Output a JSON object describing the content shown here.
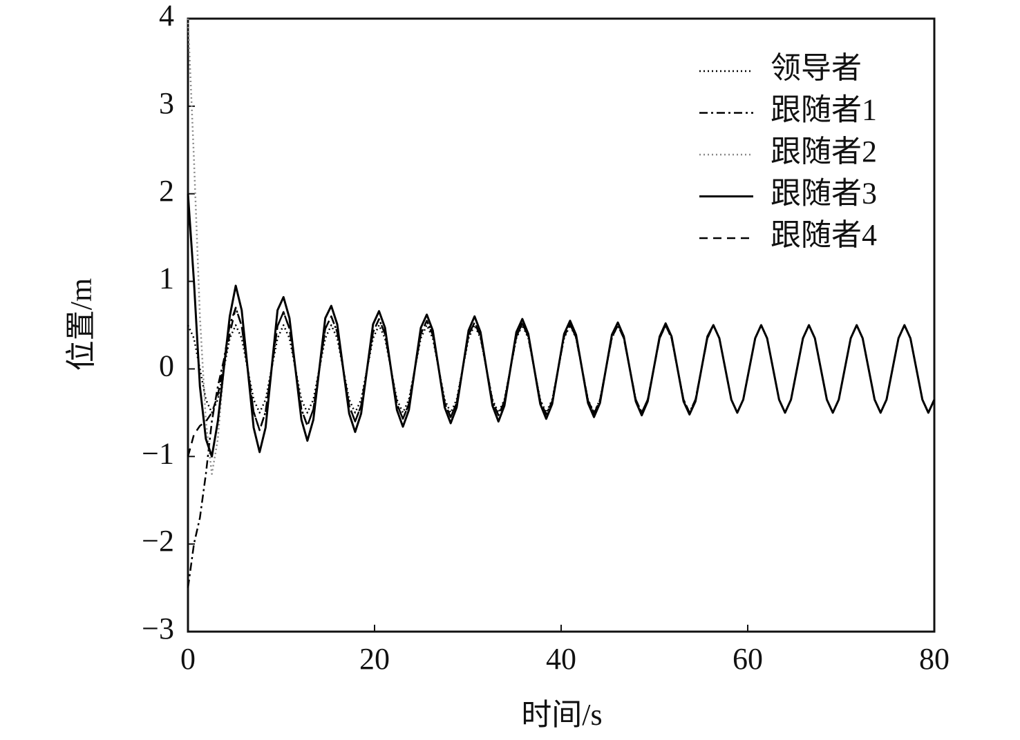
{
  "chart_data": {
    "type": "line",
    "x_label": "时间/s",
    "y_label": "位置/m",
    "xlim": [
      0,
      80
    ],
    "xticks": [
      0,
      20,
      40,
      60,
      80
    ],
    "ylim": [
      -3,
      4
    ],
    "yticks": [
      {
        "value": -3,
        "label": "−3"
      },
      {
        "value": -2,
        "label": "−2"
      },
      {
        "value": -1,
        "label": "−1"
      },
      0,
      1,
      2,
      3,
      4
    ],
    "grid": false,
    "legend": "upper right",
    "x": [
      0,
      0.64,
      1.28,
      1.92,
      2.56,
      3.2,
      3.84,
      4.48,
      5.12,
      5.76,
      6.4,
      7.04,
      7.68,
      8.32,
      8.96,
      9.6,
      10.24,
      10.88,
      11.52,
      12.16,
      12.8,
      13.44,
      14.08,
      14.72,
      15.36,
      16,
      16.64,
      17.28,
      17.92,
      18.56,
      19.2,
      19.84,
      20.48,
      21.12,
      21.76,
      22.4,
      23.04,
      23.68,
      24.32,
      24.96,
      25.6,
      26.24,
      26.88,
      27.52,
      28.16,
      28.8,
      29.44,
      30.08,
      30.72,
      31.36,
      32,
      32.64,
      33.28,
      33.92,
      34.56,
      35.2,
      35.84,
      36.48,
      37.12,
      37.76,
      38.4,
      39.04,
      39.68,
      40.32,
      40.96,
      41.6,
      42.24,
      42.88,
      43.52,
      44.16,
      44.8,
      45.44,
      46.08,
      46.72,
      47.36,
      48,
      48.64,
      49.28,
      49.92,
      50.56,
      51.2,
      51.84,
      52.48,
      53.12,
      53.76,
      54.4,
      55.04,
      55.68,
      56.32,
      56.96,
      57.6,
      58.24,
      58.88,
      59.52,
      60.16,
      60.8,
      61.44,
      62.08,
      62.72,
      63.36,
      64,
      64.64,
      65.28,
      65.92,
      66.56,
      67.2,
      67.84,
      68.48,
      69.12,
      69.76,
      70.4,
      71.04,
      71.68,
      72.32,
      72.96,
      73.6,
      74.24,
      74.88,
      75.52,
      76.16,
      76.8,
      77.44,
      78.08,
      78.72,
      79.36,
      80
    ],
    "series": [
      {
        "name": "领导者",
        "color": "#000000",
        "dash": "dotted",
        "values": [
          0.5,
          0.35,
          0,
          -0.35,
          -0.5,
          -0.35,
          0,
          0.35,
          0.5,
          0.35,
          0,
          -0.35,
          -0.5,
          -0.35,
          0,
          0.35,
          0.5,
          0.35,
          0,
          -0.35,
          -0.5,
          -0.35,
          0,
          0.35,
          0.5,
          0.35,
          0,
          -0.35,
          -0.5,
          -0.35,
          0,
          0.35,
          0.5,
          0.35,
          0,
          -0.35,
          -0.5,
          -0.35,
          0,
          0.35,
          0.5,
          0.35,
          0,
          -0.35,
          -0.5,
          -0.35,
          0,
          0.35,
          0.5,
          0.35,
          0,
          -0.35,
          -0.5,
          -0.35,
          0,
          0.35,
          0.5,
          0.35,
          0,
          -0.35,
          -0.5,
          -0.35,
          0,
          0.35,
          0.5,
          0.35,
          0,
          -0.35,
          -0.5,
          -0.35,
          0,
          0.35,
          0.5,
          0.35,
          0,
          -0.35,
          -0.5,
          -0.35,
          0,
          0.35,
          0.5,
          0.35,
          0,
          -0.35,
          -0.5,
          -0.35,
          0,
          0.35,
          0.5,
          0.35,
          0,
          -0.35,
          -0.5,
          -0.35,
          0,
          0.35,
          0.5,
          0.35,
          0,
          -0.35,
          -0.5,
          -0.35,
          0,
          0.35,
          0.5,
          0.35,
          0,
          -0.35,
          -0.5,
          -0.35,
          0,
          0.35,
          0.5,
          0.35,
          0,
          -0.35,
          -0.5,
          -0.35,
          0,
          0.35,
          0.5,
          0.35,
          0,
          -0.35,
          -0.5,
          -0.35
        ]
      },
      {
        "name": "跟随者1",
        "color": "#000000",
        "dash": "dash-dot",
        "values": [
          -2.5,
          -2.0,
          -1.7,
          -1.2,
          -0.6,
          -0.2,
          0.1,
          0.5,
          0.7,
          0.49,
          0,
          -0.49,
          -0.7,
          -0.49,
          0,
          0.49,
          0.65,
          0.46,
          0,
          -0.46,
          -0.65,
          -0.46,
          0,
          0.46,
          0.6,
          0.42,
          0,
          -0.42,
          -0.6,
          -0.42,
          0,
          0.42,
          0.57,
          0.4,
          0,
          -0.4,
          -0.57,
          -0.4,
          0,
          0.4,
          0.55,
          0.39,
          0,
          -0.39,
          -0.55,
          -0.39,
          0,
          0.39,
          0.53,
          0.37,
          0,
          -0.37,
          -0.53,
          -0.37,
          0,
          0.37,
          0.52,
          0.37,
          0,
          -0.37,
          -0.52,
          -0.37,
          0,
          0.37,
          0.51,
          0.36,
          0,
          -0.36,
          -0.51,
          -0.36,
          0,
          0.36,
          0.5,
          0.35,
          0,
          -0.35,
          -0.5,
          -0.35,
          0,
          0.35,
          0.5,
          0.35,
          0,
          -0.35,
          -0.5,
          -0.35,
          0,
          0.35,
          0.5,
          0.35,
          0,
          -0.35,
          -0.5,
          -0.35,
          0,
          0.35,
          0.5,
          0.35,
          0,
          -0.35,
          -0.5,
          -0.35,
          0,
          0.35,
          0.5,
          0.35,
          0,
          -0.35,
          -0.5,
          -0.35,
          0,
          0.35,
          0.5,
          0.35,
          0,
          -0.35,
          -0.5,
          -0.35,
          0,
          0.35,
          0.5,
          0.35,
          0,
          -0.35,
          -0.5,
          -0.35
        ]
      },
      {
        "name": "跟随者2",
        "color": "#888888",
        "dash": "dotted",
        "values": [
          4,
          2.4,
          0.6,
          -0.6,
          -1.2,
          -0.8,
          0,
          0.6,
          0.95,
          0.67,
          0,
          -0.67,
          -0.95,
          -0.67,
          0,
          0.67,
          0.82,
          0.58,
          0,
          -0.58,
          -0.82,
          -0.58,
          0,
          0.58,
          0.72,
          0.51,
          0,
          -0.51,
          -0.72,
          -0.51,
          0,
          0.51,
          0.66,
          0.47,
          0,
          -0.47,
          -0.66,
          -0.47,
          0,
          0.47,
          0.62,
          0.44,
          0,
          -0.44,
          -0.62,
          -0.44,
          0,
          0.44,
          0.6,
          0.42,
          0,
          -0.42,
          -0.6,
          -0.42,
          0,
          0.42,
          0.57,
          0.4,
          0,
          -0.4,
          -0.57,
          -0.4,
          0,
          0.4,
          0.55,
          0.39,
          0,
          -0.39,
          -0.55,
          -0.39,
          0,
          0.39,
          0.53,
          0.37,
          0,
          -0.37,
          -0.53,
          -0.37,
          0,
          0.37,
          0.52,
          0.37,
          0,
          -0.37,
          -0.52,
          -0.37,
          0,
          0.37,
          0.5,
          0.35,
          0,
          -0.35,
          -0.5,
          -0.35,
          0,
          0.35,
          0.5,
          0.35,
          0,
          -0.35,
          -0.5,
          -0.35,
          0,
          0.35,
          0.5,
          0.35,
          0,
          -0.35,
          -0.5,
          -0.35,
          0,
          0.35,
          0.5,
          0.35,
          0,
          -0.35,
          -0.5,
          -0.35,
          0,
          0.35,
          0.5,
          0.35,
          0,
          -0.35,
          -0.5,
          -0.35
        ]
      },
      {
        "name": "跟随者3",
        "color": "#000000",
        "dash": "solid",
        "values": [
          2,
          1.0,
          -0.2,
          -0.8,
          -1.0,
          -0.6,
          0,
          0.6,
          0.95,
          0.67,
          0,
          -0.67,
          -0.95,
          -0.67,
          0,
          0.67,
          0.82,
          0.58,
          0,
          -0.58,
          -0.82,
          -0.58,
          0,
          0.58,
          0.72,
          0.51,
          0,
          -0.51,
          -0.72,
          -0.51,
          0,
          0.51,
          0.66,
          0.47,
          0,
          -0.47,
          -0.66,
          -0.47,
          0,
          0.47,
          0.62,
          0.44,
          0,
          -0.44,
          -0.62,
          -0.44,
          0,
          0.44,
          0.6,
          0.42,
          0,
          -0.42,
          -0.6,
          -0.42,
          0,
          0.42,
          0.57,
          0.4,
          0,
          -0.4,
          -0.57,
          -0.4,
          0,
          0.4,
          0.55,
          0.39,
          0,
          -0.39,
          -0.55,
          -0.39,
          0,
          0.39,
          0.53,
          0.37,
          0,
          -0.37,
          -0.53,
          -0.37,
          0,
          0.37,
          0.52,
          0.37,
          0,
          -0.37,
          -0.52,
          -0.37,
          0,
          0.37,
          0.5,
          0.35,
          0,
          -0.35,
          -0.5,
          -0.35,
          0,
          0.35,
          0.5,
          0.35,
          0,
          -0.35,
          -0.5,
          -0.35,
          0,
          0.35,
          0.5,
          0.35,
          0,
          -0.35,
          -0.5,
          -0.35,
          0,
          0.35,
          0.5,
          0.35,
          0,
          -0.35,
          -0.5,
          -0.35,
          0,
          0.35,
          0.5,
          0.35,
          0,
          -0.35,
          -0.5,
          -0.35
        ]
      },
      {
        "name": "跟随者4",
        "color": "#000000",
        "dash": "dashed",
        "values": [
          -1,
          -0.75,
          -0.65,
          -0.6,
          -0.5,
          -0.3,
          0.05,
          0.4,
          0.7,
          0.49,
          0,
          -0.49,
          -0.7,
          -0.49,
          0,
          0.49,
          0.65,
          0.46,
          0,
          -0.46,
          -0.65,
          -0.46,
          0,
          0.46,
          0.6,
          0.42,
          0,
          -0.42,
          -0.6,
          -0.42,
          0,
          0.42,
          0.57,
          0.4,
          0,
          -0.4,
          -0.57,
          -0.4,
          0,
          0.4,
          0.55,
          0.39,
          0,
          -0.39,
          -0.55,
          -0.39,
          0,
          0.39,
          0.53,
          0.37,
          0,
          -0.37,
          -0.53,
          -0.37,
          0,
          0.37,
          0.52,
          0.37,
          0,
          -0.37,
          -0.52,
          -0.37,
          0,
          0.37,
          0.51,
          0.36,
          0,
          -0.36,
          -0.51,
          -0.36,
          0,
          0.36,
          0.5,
          0.35,
          0,
          -0.35,
          -0.5,
          -0.35,
          0,
          0.35,
          0.5,
          0.35,
          0,
          -0.35,
          -0.5,
          -0.35,
          0,
          0.35,
          0.5,
          0.35,
          0,
          -0.35,
          -0.5,
          -0.35,
          0,
          0.35,
          0.5,
          0.35,
          0,
          -0.35,
          -0.5,
          -0.35,
          0,
          0.35,
          0.5,
          0.35,
          0,
          -0.35,
          -0.5,
          -0.35,
          0,
          0.35,
          0.5,
          0.35,
          0,
          -0.35,
          -0.5,
          -0.35,
          0,
          0.35,
          0.5,
          0.35,
          0,
          -0.35,
          -0.5,
          -0.35
        ]
      }
    ]
  }
}
